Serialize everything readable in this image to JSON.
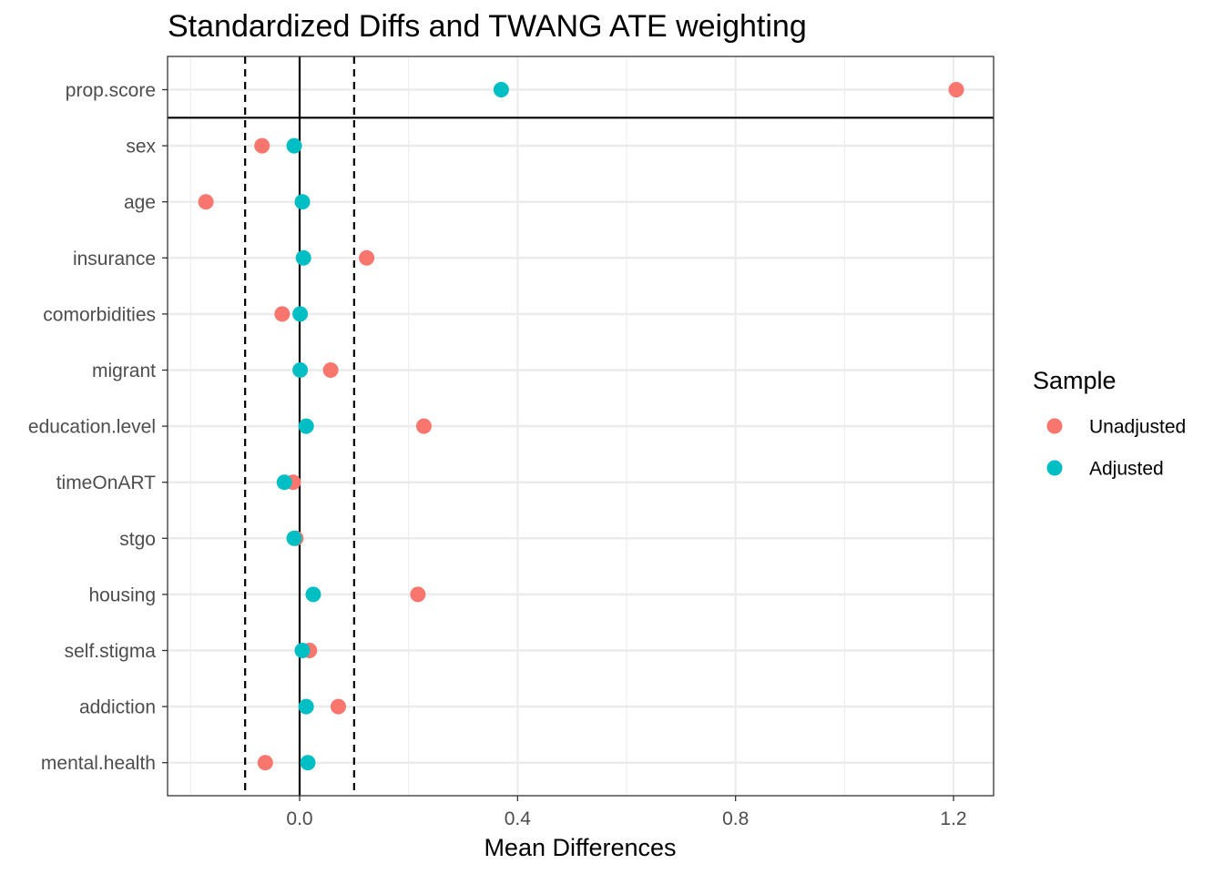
{
  "chart_data": {
    "type": "scatter",
    "title": "Standardized Diffs and TWANG ATE weighting",
    "xlabel": "Mean Differences",
    "ylabel": "",
    "xlim": [
      -0.2383,
      1.2717
    ],
    "xticks": [
      0.0,
      0.4,
      0.8,
      1.2
    ],
    "xtick_labels": [
      "0.0",
      "0.4",
      "0.8",
      "1.2"
    ],
    "reference_lines": {
      "solid": 0.0,
      "dashed": [
        -0.1,
        0.1
      ]
    },
    "separator_after": "prop.score",
    "categories": [
      "prop.score",
      "sex",
      "age",
      "insurance",
      "comorbidities",
      "migrant",
      "education.level",
      "timeOnART",
      "stgo",
      "housing",
      "self.stigma",
      "addiction",
      "mental.health"
    ],
    "series": [
      {
        "name": "Unadjusted",
        "color": "#F8766D",
        "values": [
          1.205,
          -0.069,
          -0.172,
          0.123,
          -0.032,
          0.057,
          0.228,
          -0.012,
          -0.007,
          0.217,
          0.018,
          0.071,
          -0.063
        ]
      },
      {
        "name": "Adjusted",
        "color": "#00BFC4",
        "values": [
          0.37,
          -0.01,
          0.005,
          0.007,
          0.001,
          0.001,
          0.012,
          -0.028,
          -0.01,
          0.025,
          0.005,
          0.012,
          0.015
        ]
      }
    ],
    "legend": {
      "title": "Sample",
      "position": "right"
    },
    "grid": true
  }
}
